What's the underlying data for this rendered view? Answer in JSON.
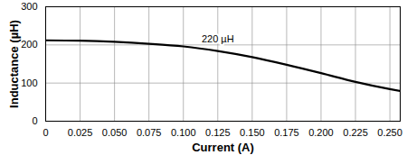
{
  "chart_data": {
    "type": "line",
    "x_label": "Current (A)",
    "y_label": "Inductance (µH)",
    "annotation": "220 µH",
    "x": [
      0,
      0.025,
      0.05,
      0.075,
      0.1,
      0.125,
      0.15,
      0.175,
      0.2,
      0.225,
      0.25,
      0.2575
    ],
    "values": [
      212,
      211,
      208,
      203,
      196,
      184,
      168,
      148,
      126,
      103,
      84,
      79
    ],
    "color": "#000000",
    "xlim": [
      0,
      0.2575
    ],
    "ylim": [
      0,
      300
    ],
    "xticks": [
      0,
      0.025,
      {
        "value": 0.05,
        "label": "0.050"
      },
      0.075,
      {
        "value": 0.1,
        "label": "0.100"
      },
      0.125,
      {
        "value": 0.15,
        "label": "0.150"
      },
      0.175,
      {
        "value": 0.2,
        "label": "0.200"
      },
      0.225,
      {
        "value": 0.25,
        "label": "0.250"
      }
    ],
    "yticks": [
      0,
      100,
      200,
      300
    ],
    "grid": true
  }
}
